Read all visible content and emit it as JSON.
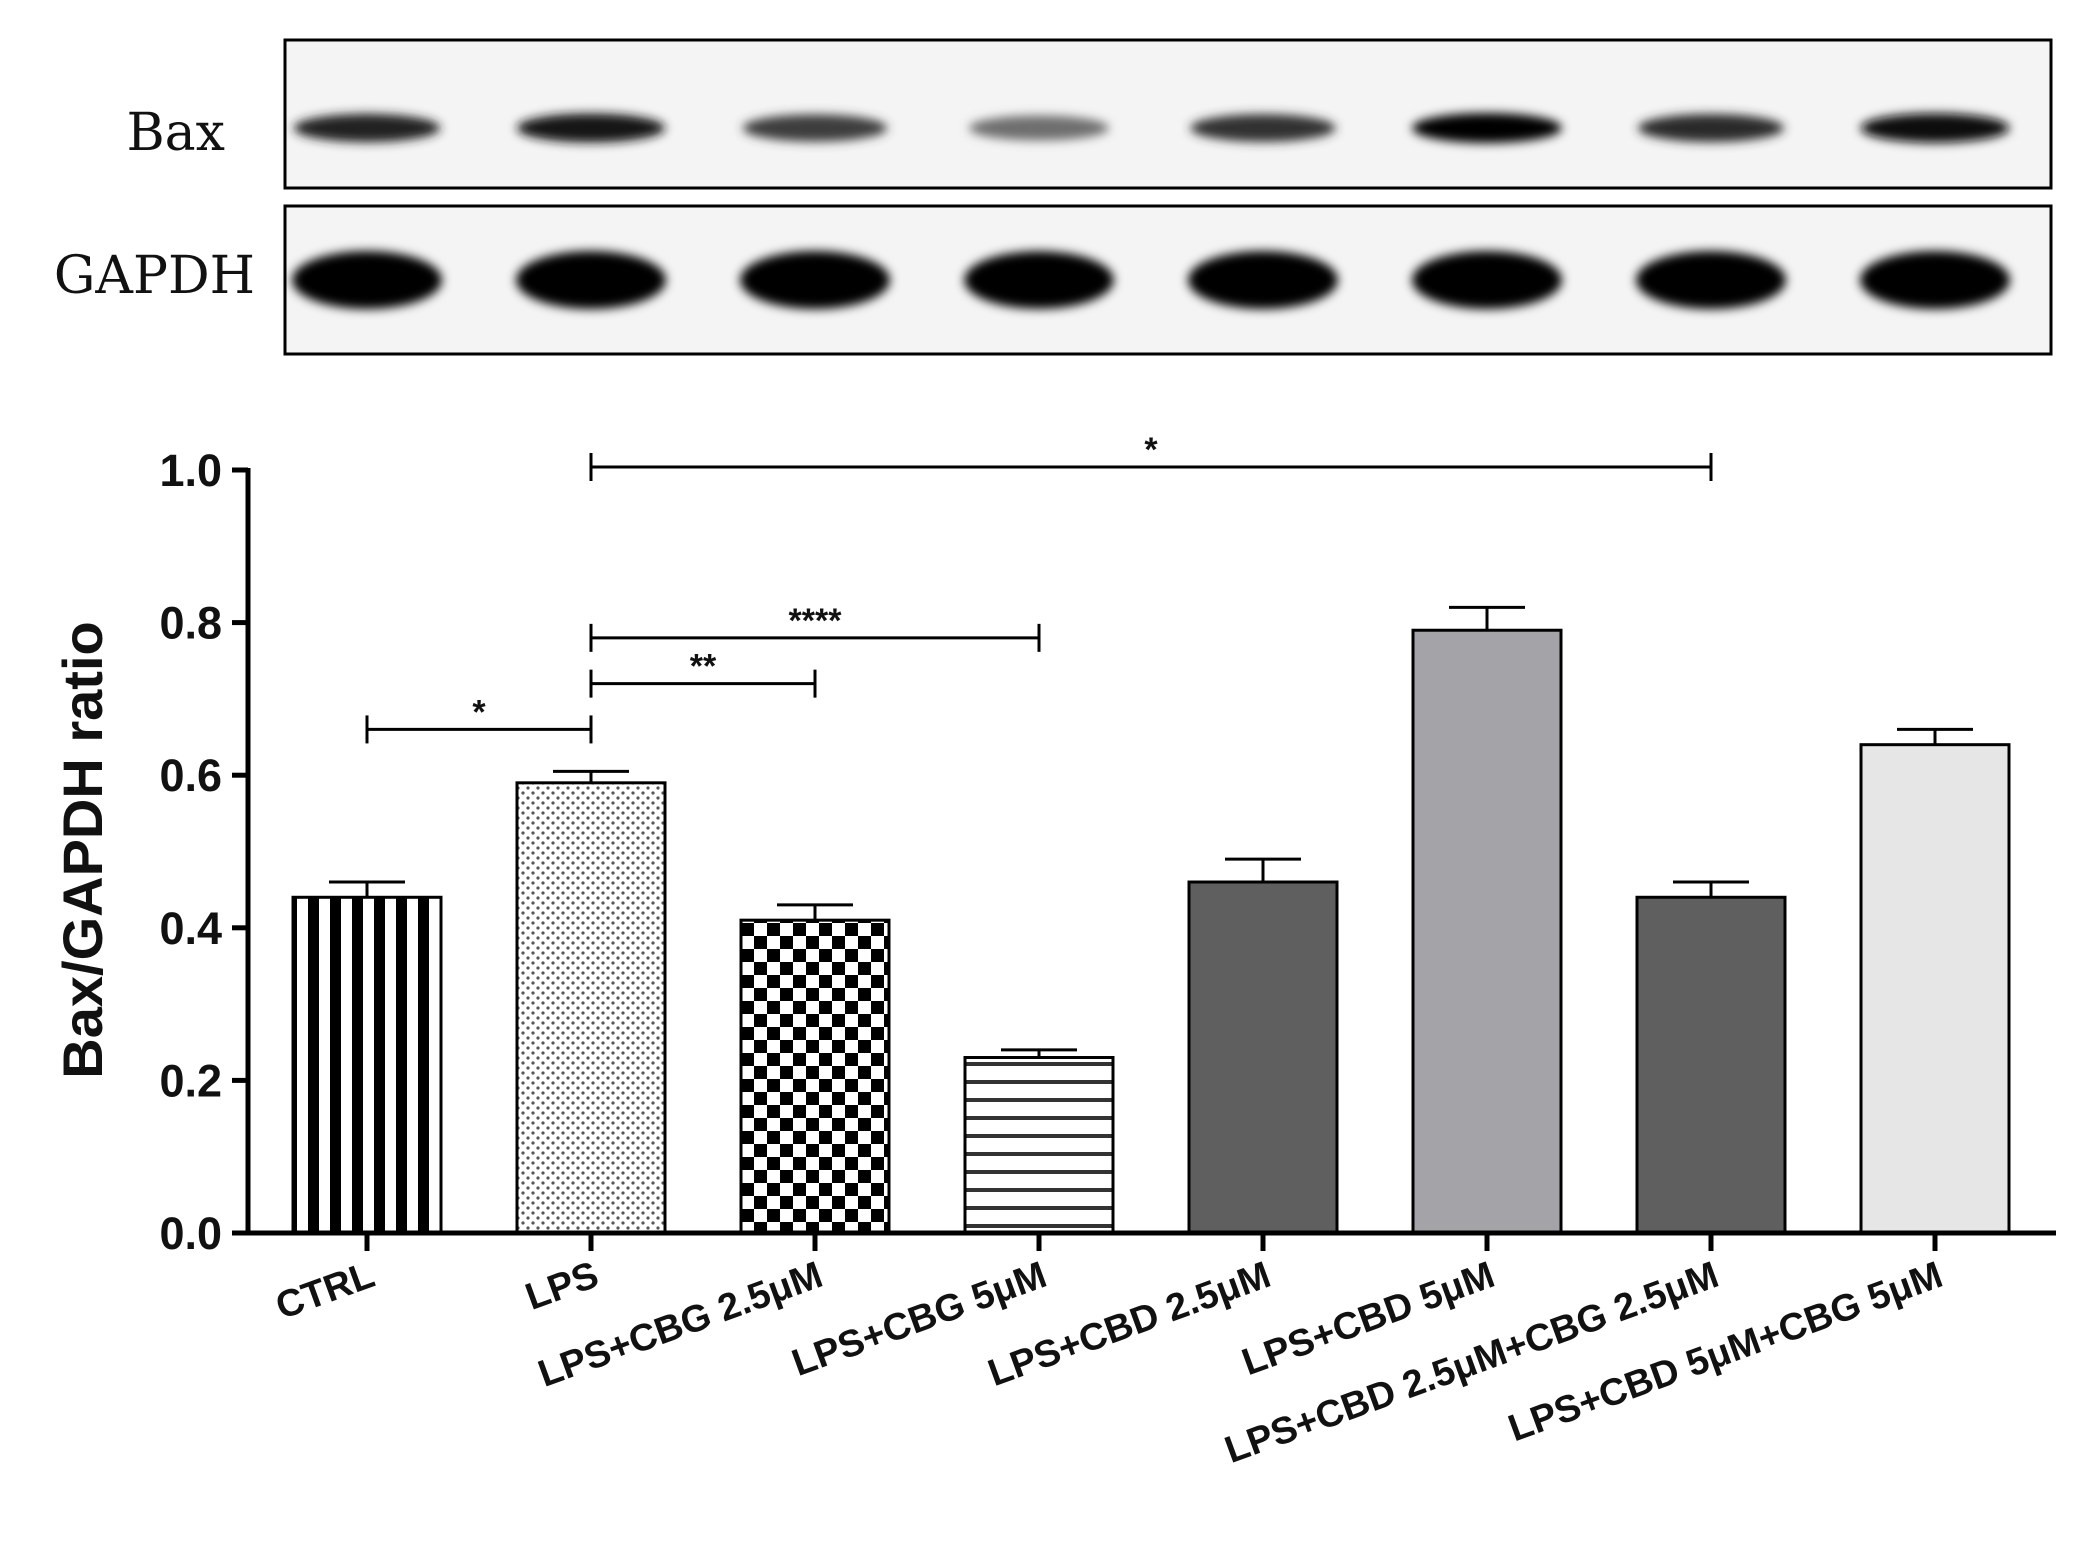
{
  "blot": {
    "rows": [
      {
        "label": "Bax",
        "intensities": [
          0.82,
          0.9,
          0.7,
          0.45,
          0.75,
          1.0,
          0.78,
          0.95
        ]
      },
      {
        "label": "GAPDH",
        "intensities": [
          1.0,
          1.0,
          1.0,
          0.98,
          1.0,
          1.0,
          1.0,
          1.0
        ]
      }
    ]
  },
  "chart_data": {
    "type": "bar",
    "categories": [
      "CTRL",
      "LPS",
      "LPS+CBG 2.5μM",
      "LPS+CBG 5μM",
      "LPS+CBD 2.5μM",
      "LPS+CBD 5μM",
      "LPS+CBD 2.5μM+CBG 2.5μM",
      "LPS+CBD 5μM+CBG 5μM"
    ],
    "values": [
      0.44,
      0.59,
      0.41,
      0.23,
      0.46,
      0.79,
      0.44,
      0.64
    ],
    "errors": [
      0.02,
      0.015,
      0.02,
      0.01,
      0.03,
      0.03,
      0.02,
      0.02
    ],
    "patterns": [
      "vertical-stripes",
      "dots",
      "checker",
      "horizontal-stripes",
      "solid",
      "solid",
      "solid",
      "solid"
    ],
    "fills": [
      "#ffffff",
      "#ffffff",
      "#ffffff",
      "#ffffff",
      "#5f5f5f",
      "#a4a4a8",
      "#5f5f5f",
      "#e6e6e6"
    ],
    "ylabel": "Bax/GAPDH ratio",
    "ylim": [
      0,
      1.0
    ],
    "yticks": [
      "0.0",
      "0.2",
      "0.4",
      "0.6",
      "0.8",
      "1.0"
    ],
    "significance": [
      {
        "from": 0,
        "to": 1,
        "y": 0.66,
        "label": "*"
      },
      {
        "from": 1,
        "to": 2,
        "y": 0.72,
        "label": "**"
      },
      {
        "from": 1,
        "to": 3,
        "y": 0.78,
        "label": "****"
      },
      {
        "from": 1,
        "to": 6,
        "y": 1.0,
        "label": "*"
      }
    ]
  }
}
